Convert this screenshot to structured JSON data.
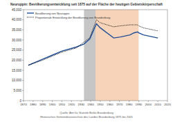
{
  "chart_data": {
    "type": "line",
    "title": "Neuruppin: Bevölkerungsentwicklung seit 1875 auf der Fläche der heutigen Gebietskörperschaft",
    "x": [
      1875,
      1890,
      1900,
      1910,
      1925,
      1933,
      1939,
      1946,
      1950,
      1964,
      1971,
      1981,
      1985,
      1989,
      1990,
      1995,
      2000,
      2005,
      2010
    ],
    "series": [
      {
        "name": "Bevölkerung von Neuruppin",
        "color": "#1f4e96",
        "line_style": "solid",
        "values": [
          17500,
          20500,
          22500,
          24500,
          26500,
          28000,
          30500,
          38000,
          36000,
          31000,
          31500,
          32500,
          33500,
          34000,
          33500,
          32500,
          32000,
          31500,
          31000
        ]
      },
      {
        "name": "Proportionale Entwicklung der Bevölkerung von Brandenburg",
        "color": "#000000",
        "line_style": "dotted",
        "values": [
          17500,
          20000,
          22000,
          24000,
          26000,
          29000,
          31000,
          40000,
          38500,
          36500,
          37000,
          37500,
          37500,
          37500,
          37000,
          36000,
          35500,
          35000,
          34500
        ]
      }
    ],
    "periods": [
      {
        "from": 1933,
        "to": 1945,
        "color": "#b8b8b8"
      },
      {
        "from": 1945,
        "to": 1990,
        "color": "#f5c9a8"
      }
    ],
    "xlim": [
      1870,
      2020
    ],
    "xticks": [
      1870,
      1880,
      1890,
      1900,
      1910,
      1920,
      1930,
      1940,
      1950,
      1960,
      1970,
      1980,
      1990,
      2000,
      2010,
      2020
    ],
    "ylim": [
      0,
      45000
    ],
    "yticks": [
      0,
      {
        "value": 5000,
        "label": "5,000"
      },
      {
        "value": 10000,
        "label": "10,000"
      },
      {
        "value": 15000,
        "label": "15,000"
      },
      {
        "value": 20000,
        "label": "20,000"
      },
      {
        "value": 25000,
        "label": "25,000"
      },
      {
        "value": 30000,
        "label": "30,000"
      },
      {
        "value": 35000,
        "label": "35,000"
      },
      {
        "value": 40000,
        "label": "40,000"
      },
      {
        "value": 45000,
        "label": "45,000"
      }
    ],
    "grid": false,
    "legend": "upper left",
    "source": [
      "Quelle: Amt für Statistik Berlin-Brandenburg",
      "Historisches Gemeindeverzeichnis des Landes Brandenburg 1875 bis 2005"
    ]
  }
}
